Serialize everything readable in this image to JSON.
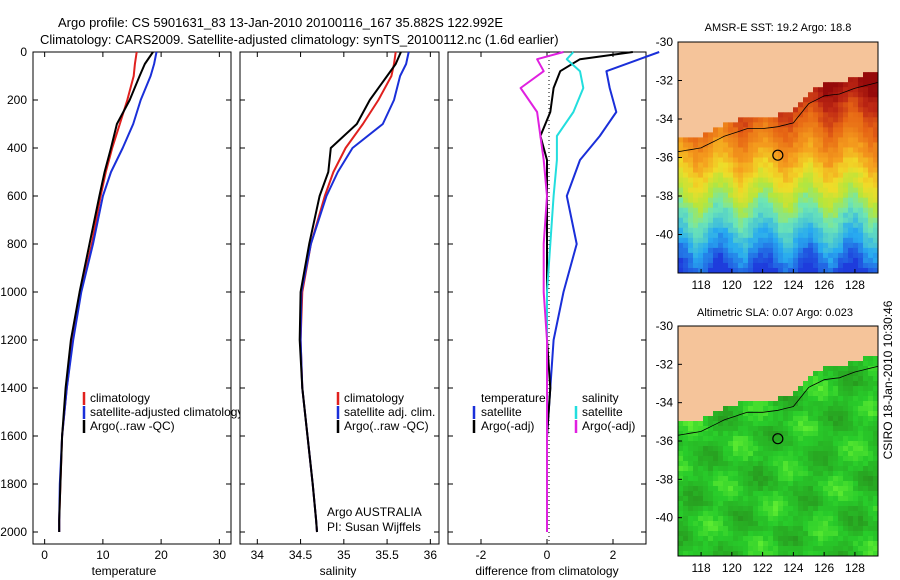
{
  "header": {
    "line1": "Argo profile: CS 5901631_83 13-Jan-2010 20100116_167 35.882S 122.992E",
    "line2": "Climatology: CARS2009. Satellite-adjusted climatology: synTS_20100112.nc (1.6d earlier)"
  },
  "colors": {
    "climatology": "#e0201e",
    "satellite": "#1a2fd9",
    "argo": "#000000",
    "sat_salinity": "#22dede",
    "argo_adj_salinity": "#e020e0",
    "land": "#f5c49a"
  },
  "chart_data": [
    {
      "type": "line",
      "name": "temperature-panel",
      "xlabel": "temperature",
      "ylabel": "",
      "xlim": [
        -2,
        32
      ],
      "ylim": [
        2050,
        0
      ],
      "xticks": [
        "0",
        "10",
        "20",
        "30"
      ],
      "yticks": [
        "0",
        "200",
        "400",
        "600",
        "800",
        "1000",
        "1200",
        "1400",
        "1600",
        "1800",
        "2000"
      ],
      "legend": [
        "climatology",
        "satellite-adjusted climatology",
        "Argo(..raw -QC)"
      ],
      "series": [
        {
          "name": "climatology",
          "color": "red",
          "x": [
            15.8,
            15.5,
            15.3,
            14.2,
            12.9,
            11.6,
            10.5,
            9.6,
            8.1,
            6.2,
            4.8,
            3.8,
            3.0,
            2.7,
            2.5,
            2.5
          ],
          "y": [
            0,
            50,
            100,
            200,
            300,
            400,
            500,
            600,
            800,
            1000,
            1200,
            1400,
            1600,
            1800,
            1950,
            2000
          ]
        },
        {
          "name": "satellite-adjusted climatology",
          "color": "blue",
          "x": [
            19.2,
            18.8,
            18.2,
            16.5,
            15.2,
            13.4,
            11.4,
            10.0,
            8.3,
            6.3,
            4.9,
            3.8,
            3.0,
            2.6,
            2.5,
            2.5
          ],
          "y": [
            0,
            50,
            100,
            200,
            300,
            400,
            500,
            600,
            800,
            1000,
            1200,
            1400,
            1600,
            1800,
            1950,
            2000
          ]
        },
        {
          "name": "Argo(..raw -QC)",
          "color": "black",
          "x": [
            18.6,
            17.2,
            16.3,
            14.6,
            12.4,
            11.4,
            10.3,
            9.4,
            7.7,
            6.0,
            4.5,
            3.6,
            3.0,
            2.7,
            2.5,
            2.5
          ],
          "y": [
            0,
            50,
            100,
            200,
            300,
            400,
            500,
            600,
            800,
            1000,
            1200,
            1400,
            1600,
            1800,
            1950,
            2000
          ]
        }
      ]
    },
    {
      "type": "line",
      "name": "salinity-panel",
      "xlabel": "salinity",
      "ylabel": "",
      "xlim": [
        33.8,
        36.1
      ],
      "ylim": [
        2050,
        0
      ],
      "xticks": [
        "34",
        "34.5",
        "35",
        "35.5",
        "36"
      ],
      "legend": [
        "climatology",
        "satellite adj. clim.",
        "Argo(..raw -QC)"
      ],
      "annotation": [
        "Argo AUSTRALIA",
        "PI: Susan Wijffels"
      ],
      "series": [
        {
          "name": "climatology",
          "color": "red",
          "x": [
            35.6,
            35.58,
            35.55,
            35.4,
            35.22,
            35.02,
            34.88,
            34.78,
            34.62,
            34.52,
            34.5,
            34.52,
            34.58,
            34.64,
            34.68,
            34.69
          ],
          "y": [
            0,
            50,
            100,
            200,
            300,
            400,
            500,
            600,
            800,
            1000,
            1200,
            1400,
            1600,
            1800,
            1950,
            2000
          ]
        },
        {
          "name": "satellite adj. clim.",
          "color": "blue",
          "x": [
            35.75,
            35.72,
            35.65,
            35.58,
            35.45,
            35.1,
            34.93,
            34.8,
            34.62,
            34.51,
            34.5,
            34.52,
            34.58,
            34.64,
            34.68,
            34.69
          ],
          "y": [
            0,
            50,
            100,
            200,
            300,
            400,
            500,
            600,
            800,
            1000,
            1200,
            1400,
            1600,
            1800,
            1950,
            2000
          ]
        },
        {
          "name": "Argo(..raw -QC)",
          "color": "black",
          "x": [
            35.66,
            35.6,
            35.5,
            35.3,
            35.15,
            34.85,
            34.82,
            34.72,
            34.6,
            34.5,
            34.49,
            34.52,
            34.58,
            34.64,
            34.68,
            34.69
          ],
          "y": [
            0,
            50,
            100,
            200,
            300,
            400,
            500,
            600,
            800,
            1000,
            1200,
            1400,
            1600,
            1800,
            1950,
            2000
          ]
        }
      ]
    },
    {
      "type": "line",
      "name": "difference-panel",
      "xlabel": "difference from climatology",
      "ylabel": "",
      "xlim": [
        -3,
        3
      ],
      "ylim": [
        2050,
        0
      ],
      "xticks": [
        "-2",
        "0",
        "2"
      ],
      "legend_title_left": "temperature",
      "legend_title_right": "salinity",
      "legend": [
        "satellite",
        "Argo(-adj)",
        "satellite",
        "Argo(-adj)"
      ],
      "series": [
        {
          "name": "temperature satellite",
          "color": "blue",
          "x": [
            3.4,
            2.8,
            1.8,
            1.9,
            2.1,
            1.6,
            1.0,
            0.6,
            0.9,
            0.5,
            0.2,
            0.1,
            0.0,
            0.0,
            0.0,
            0.0
          ],
          "y": [
            0,
            30,
            80,
            150,
            250,
            350,
            450,
            600,
            800,
            1000,
            1200,
            1400,
            1600,
            1800,
            1950,
            2000
          ]
        },
        {
          "name": "temperature Argo(-adj)",
          "color": "black",
          "x": [
            2.6,
            1.0,
            0.4,
            0.2,
            0.1,
            -0.2,
            0.0,
            0.0,
            0.0,
            0.0,
            0.0,
            0.1,
            0.0,
            0.0,
            0.0,
            0.0
          ],
          "y": [
            0,
            30,
            80,
            150,
            250,
            350,
            450,
            600,
            800,
            1000,
            1200,
            1400,
            1600,
            1800,
            1950,
            2000
          ]
        },
        {
          "name": "salinity satellite",
          "color": "cyan",
          "x": [
            0.8,
            0.6,
            1.0,
            1.1,
            0.8,
            0.3,
            0.3,
            0.2,
            0.1,
            0.0,
            0.0,
            0.0,
            0.0,
            0.0,
            0.0,
            0.0
          ],
          "y": [
            0,
            30,
            80,
            150,
            250,
            350,
            450,
            600,
            800,
            1000,
            1200,
            1400,
            1600,
            1800,
            1950,
            2000
          ]
        },
        {
          "name": "salinity Argo(-adj)",
          "color": "magenta",
          "x": [
            0.5,
            -0.3,
            -0.1,
            -0.8,
            -0.3,
            -0.2,
            -0.1,
            0.0,
            -0.1,
            -0.1,
            0.0,
            0.0,
            0.0,
            0.0,
            0.0,
            0.0
          ],
          "y": [
            0,
            30,
            80,
            150,
            250,
            350,
            450,
            600,
            800,
            1000,
            1200,
            1400,
            1600,
            1800,
            1950,
            2000
          ]
        }
      ]
    },
    {
      "type": "heatmap",
      "name": "sst-map",
      "title": "AMSR-E SST: 19.2 Argo: 18.8",
      "xlim": [
        116.5,
        129.5
      ],
      "ylim": [
        -42,
        -30
      ],
      "xticks": [
        "118",
        "120",
        "122",
        "124",
        "126",
        "128"
      ],
      "yticks": [
        "-30",
        "-32",
        "-34",
        "-36",
        "-38",
        "-40"
      ],
      "marker": {
        "lon": 122.99,
        "lat": -35.88
      }
    },
    {
      "type": "heatmap",
      "name": "sla-map",
      "title": "Altimetric SLA: 0.07 Argo: 0.023",
      "xlim": [
        116.5,
        129.5
      ],
      "ylim": [
        -42,
        -30
      ],
      "xticks": [
        "118",
        "120",
        "122",
        "124",
        "126",
        "128"
      ],
      "yticks": [
        "-30",
        "-32",
        "-34",
        "-36",
        "-38",
        "-40"
      ],
      "marker": {
        "lon": 122.99,
        "lat": -35.88
      }
    }
  ],
  "footer": {
    "credit": "CSIRO 18-Jan-2010 10:30:46"
  }
}
